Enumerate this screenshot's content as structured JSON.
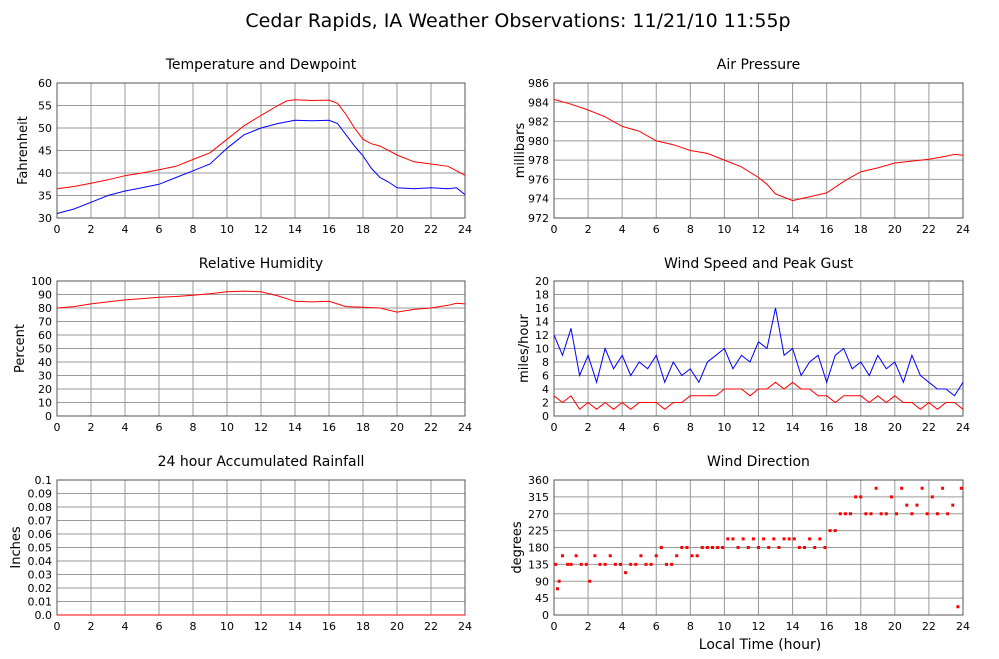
{
  "page": {
    "title": "Cedar Rapids, IA Weather Observations: 11/21/10 11:55p",
    "xaxis_label": "Local Time (hour)"
  },
  "colors": {
    "red": "#ff0000",
    "blue": "#0000ff",
    "grid": "#9a9a9a"
  },
  "chart_data": [
    {
      "id": "temp",
      "type": "line",
      "title": "Temperature and Dewpoint",
      "ylabel": "Fahrenheit",
      "xlim": [
        0,
        24
      ],
      "ylim": [
        30,
        60
      ],
      "xticks": [
        0,
        2,
        4,
        6,
        8,
        10,
        12,
        14,
        16,
        18,
        20,
        22,
        24
      ],
      "yticks": [
        30,
        35,
        40,
        45,
        50,
        55,
        60
      ],
      "grid": true,
      "series": [
        {
          "color": "red",
          "x": [
            0,
            1,
            2,
            3,
            4,
            5,
            6,
            7,
            8,
            9,
            10,
            11,
            12,
            13,
            13.5,
            14,
            15,
            16,
            16.5,
            17,
            17.5,
            18,
            18.5,
            19,
            20,
            21,
            22,
            23,
            24
          ],
          "values": [
            36.5,
            37,
            37.7,
            38.5,
            39.4,
            40,
            40.7,
            41.5,
            43,
            44.5,
            47.5,
            50.5,
            52.8,
            55,
            56,
            56.3,
            56.1,
            56.2,
            55.5,
            53,
            50,
            47.5,
            46.5,
            46,
            44,
            42.5,
            42,
            41.5,
            39.5
          ]
        },
        {
          "color": "blue",
          "x": [
            0,
            1,
            2,
            3,
            4,
            5,
            6,
            7,
            8,
            9,
            10,
            11,
            12,
            13,
            14,
            15,
            16,
            16.5,
            17,
            17.5,
            18,
            18.5,
            19,
            19.5,
            20,
            21,
            22,
            23,
            23.5,
            24
          ],
          "values": [
            31,
            32,
            33.5,
            35,
            36,
            36.7,
            37.5,
            39,
            40.5,
            42,
            45.5,
            48.5,
            50,
            51,
            51.7,
            51.6,
            51.7,
            51,
            48.5,
            46,
            43.8,
            41,
            39,
            38,
            36.7,
            36.5,
            36.7,
            36.5,
            36.7,
            35.2
          ]
        }
      ]
    },
    {
      "id": "pres",
      "type": "line",
      "title": "Air Pressure",
      "ylabel": "millibars",
      "xlim": [
        0,
        24
      ],
      "ylim": [
        972,
        986
      ],
      "xticks": [
        0,
        2,
        4,
        6,
        8,
        10,
        12,
        14,
        16,
        18,
        20,
        22,
        24
      ],
      "yticks": [
        972,
        974,
        976,
        978,
        980,
        982,
        984,
        986
      ],
      "grid": true,
      "series": [
        {
          "color": "red",
          "x": [
            0,
            1,
            2,
            3,
            4,
            5,
            6,
            7,
            8,
            9,
            10,
            11,
            12,
            12.5,
            13,
            14,
            15,
            16,
            17,
            18,
            19,
            20,
            21,
            22,
            23,
            23.5,
            24
          ],
          "values": [
            984.3,
            983.8,
            983.2,
            982.5,
            981.5,
            981,
            980,
            979.6,
            979,
            978.7,
            978,
            977.3,
            976.2,
            975.5,
            974.5,
            973.8,
            974.2,
            974.6,
            975.8,
            976.8,
            977.2,
            977.7,
            977.9,
            978.1,
            978.4,
            978.6,
            978.5
          ]
        }
      ]
    },
    {
      "id": "rh",
      "type": "line",
      "title": "Relative Humidity",
      "ylabel": "Percent",
      "xlim": [
        0,
        24
      ],
      "ylim": [
        0,
        100
      ],
      "xticks": [
        0,
        2,
        4,
        6,
        8,
        10,
        12,
        14,
        16,
        18,
        20,
        22,
        24
      ],
      "yticks": [
        0,
        10,
        20,
        30,
        40,
        50,
        60,
        70,
        80,
        90,
        100
      ],
      "grid": true,
      "series": [
        {
          "color": "red",
          "x": [
            0,
            1,
            2,
            3,
            4,
            5,
            6,
            7,
            8,
            9,
            10,
            11,
            12,
            13,
            14,
            15,
            16,
            17,
            18,
            19,
            20,
            21,
            22,
            23,
            23.5,
            24
          ],
          "values": [
            80,
            81,
            83,
            84.5,
            86,
            87,
            88,
            88.5,
            89.5,
            90.5,
            92,
            92.5,
            92,
            89,
            85,
            84.5,
            85,
            81,
            80.5,
            80,
            77,
            79,
            80,
            82,
            83.5,
            83
          ]
        }
      ]
    },
    {
      "id": "wind",
      "type": "line",
      "title": "Wind Speed and Peak Gust",
      "ylabel": "miles/hour",
      "xlim": [
        0,
        24
      ],
      "ylim": [
        0,
        20
      ],
      "xticks": [
        0,
        2,
        4,
        6,
        8,
        10,
        12,
        14,
        16,
        18,
        20,
        22,
        24
      ],
      "yticks": [
        0,
        2,
        4,
        6,
        8,
        10,
        12,
        14,
        16,
        18,
        20
      ],
      "grid": true,
      "series": [
        {
          "color": "blue",
          "x": [
            0,
            0.5,
            1,
            1.5,
            2,
            2.5,
            3,
            3.5,
            4,
            4.5,
            5,
            5.5,
            6,
            6.5,
            7,
            7.5,
            8,
            8.5,
            9,
            9.5,
            10,
            10.5,
            11,
            11.5,
            12,
            12.5,
            13,
            13.5,
            14,
            14.5,
            15,
            15.5,
            16,
            16.5,
            17,
            17.5,
            18,
            18.5,
            19,
            19.5,
            20,
            20.5,
            21,
            21.5,
            22,
            22.5,
            23,
            23.5,
            24
          ],
          "values": [
            12,
            9,
            13,
            6,
            9,
            5,
            10,
            7,
            9,
            6,
            8,
            7,
            9,
            5,
            8,
            6,
            7,
            5,
            8,
            9,
            10,
            7,
            9,
            8,
            11,
            10,
            16,
            9,
            10,
            6,
            8,
            9,
            5,
            9,
            10,
            7,
            8,
            6,
            9,
            7,
            8,
            5,
            9,
            6,
            5,
            4,
            4,
            3,
            5
          ]
        },
        {
          "color": "red",
          "x": [
            0,
            0.5,
            1,
            1.5,
            2,
            2.5,
            3,
            3.5,
            4,
            4.5,
            5,
            5.5,
            6,
            6.5,
            7,
            7.5,
            8,
            8.5,
            9,
            9.5,
            10,
            10.5,
            11,
            11.5,
            12,
            12.5,
            13,
            13.5,
            14,
            14.5,
            15,
            15.5,
            16,
            16.5,
            17,
            17.5,
            18,
            18.5,
            19,
            19.5,
            20,
            20.5,
            21,
            21.5,
            22,
            22.5,
            23,
            23.5,
            24
          ],
          "values": [
            3,
            2,
            3,
            1,
            2,
            1,
            2,
            1,
            2,
            1,
            2,
            2,
            2,
            1,
            2,
            2,
            3,
            3,
            3,
            3,
            4,
            4,
            4,
            3,
            4,
            4,
            5,
            4,
            5,
            4,
            4,
            3,
            3,
            2,
            3,
            3,
            3,
            2,
            3,
            2,
            3,
            2,
            2,
            1,
            2,
            1,
            2,
            2,
            1
          ]
        }
      ]
    },
    {
      "id": "rain",
      "type": "line",
      "title": "24 hour Accumulated Rainfall",
      "ylabel": "Inches",
      "xlim": [
        0,
        24
      ],
      "ylim": [
        0,
        0.1
      ],
      "xticks": [
        0,
        2,
        4,
        6,
        8,
        10,
        12,
        14,
        16,
        18,
        20,
        22,
        24
      ],
      "yticks": [
        0.0,
        0.01,
        0.02,
        0.03,
        0.04,
        0.05,
        0.06,
        0.07,
        0.08,
        0.09,
        0.1
      ],
      "ytick_labels": [
        "0.0",
        "0.01",
        "0.02",
        "0.03",
        "0.04",
        "0.05",
        "0.06",
        "0.07",
        "0.08",
        "0.09",
        "0.1"
      ],
      "grid": true,
      "series": [
        {
          "color": "red",
          "x": [
            0,
            24
          ],
          "values": [
            0,
            0
          ]
        }
      ]
    },
    {
      "id": "dir",
      "type": "scatter",
      "title": "Wind Direction",
      "ylabel": "degrees",
      "xlim": [
        0,
        24
      ],
      "ylim": [
        0,
        360
      ],
      "xticks": [
        0,
        2,
        4,
        6,
        8,
        10,
        12,
        14,
        16,
        18,
        20,
        22,
        24
      ],
      "yticks": [
        0,
        45,
        90,
        135,
        180,
        225,
        270,
        315,
        360
      ],
      "grid": true,
      "series": [
        {
          "color": "red",
          "x": [
            0.1,
            0.2,
            0.3,
            0.5,
            0.8,
            1.0,
            1.3,
            1.6,
            1.9,
            2.1,
            2.4,
            2.7,
            3.0,
            3.3,
            3.6,
            3.9,
            4.2,
            4.5,
            4.8,
            5.1,
            5.4,
            5.7,
            6.0,
            6.3,
            6.6,
            6.9,
            7.2,
            7.5,
            7.8,
            8.1,
            8.4,
            8.7,
            9.0,
            9.3,
            9.6,
            9.9,
            10.2,
            10.5,
            10.8,
            11.1,
            11.4,
            11.7,
            12.0,
            12.3,
            12.6,
            12.9,
            13.2,
            13.5,
            13.8,
            14.1,
            14.4,
            14.7,
            15.0,
            15.3,
            15.6,
            15.9,
            16.2,
            16.5,
            16.8,
            17.1,
            17.4,
            17.7,
            18.0,
            18.3,
            18.6,
            18.9,
            19.2,
            19.5,
            19.8,
            20.1,
            20.4,
            20.7,
            21.0,
            21.3,
            21.6,
            21.9,
            22.2,
            22.5,
            22.8,
            23.1,
            23.4,
            23.7,
            23.9
          ],
          "values": [
            135,
            70,
            90,
            158,
            135,
            135,
            158,
            135,
            135,
            90,
            158,
            135,
            135,
            158,
            135,
            135,
            113,
            135,
            135,
            158,
            135,
            135,
            158,
            180,
            135,
            135,
            158,
            180,
            180,
            158,
            158,
            180,
            180,
            180,
            180,
            180,
            203,
            203,
            180,
            203,
            180,
            203,
            180,
            203,
            180,
            203,
            180,
            203,
            203,
            203,
            180,
            180,
            203,
            180,
            203,
            180,
            225,
            225,
            270,
            270,
            270,
            315,
            315,
            270,
            270,
            338,
            270,
            270,
            315,
            270,
            338,
            293,
            270,
            293,
            338,
            270,
            315,
            270,
            338,
            270,
            293,
            22,
            338
          ]
        }
      ]
    }
  ]
}
